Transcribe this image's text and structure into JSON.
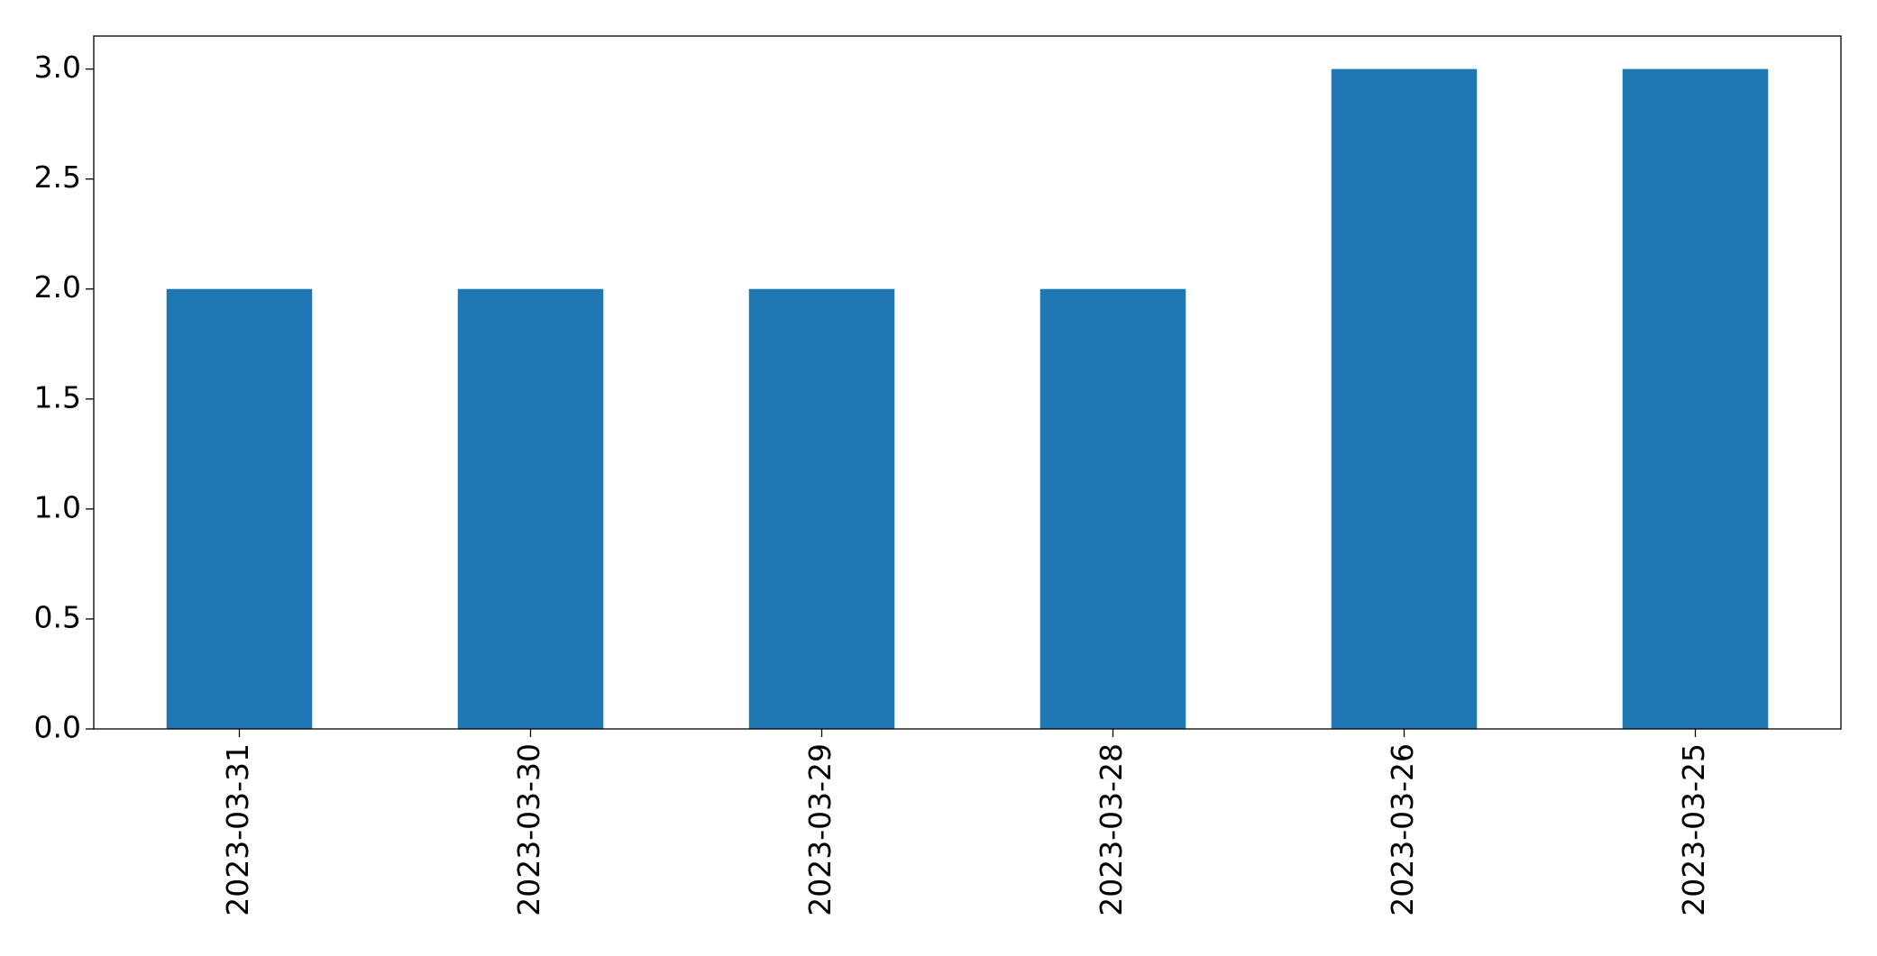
{
  "chart_data": {
    "type": "bar",
    "categories": [
      "2023-03-31",
      "2023-03-30",
      "2023-03-29",
      "2023-03-28",
      "2023-03-26",
      "2023-03-25"
    ],
    "values": [
      2,
      2,
      2,
      2,
      3,
      3
    ],
    "color": "#1f77b4",
    "ylim": [
      0,
      3.15
    ],
    "yticks": [
      {
        "value": 0,
        "label": "0.0"
      },
      {
        "value": 0.5,
        "label": "0.5"
      },
      {
        "value": 1,
        "label": "1.0"
      },
      {
        "value": 1.5,
        "label": "1.5"
      },
      {
        "value": 2,
        "label": "2.0"
      },
      {
        "value": 2.5,
        "label": "2.5"
      },
      {
        "value": 3,
        "label": "3.0"
      }
    ],
    "grid": false
  }
}
